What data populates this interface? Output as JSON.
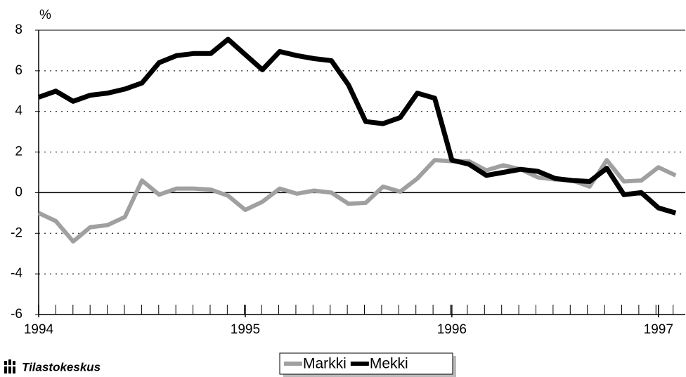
{
  "chart_data": {
    "type": "line",
    "y_unit_label": "%",
    "source": "Tilastokeskus",
    "x": [
      1994,
      1994.083,
      1994.167,
      1994.25,
      1994.333,
      1994.417,
      1994.5,
      1994.583,
      1994.667,
      1994.75,
      1994.833,
      1994.917,
      1995,
      1995.083,
      1995.167,
      1995.25,
      1995.333,
      1995.417,
      1995.5,
      1995.583,
      1995.667,
      1995.75,
      1995.833,
      1995.917,
      1996,
      1996.083,
      1996.167,
      1996.25,
      1996.333,
      1996.417,
      1996.5,
      1996.583,
      1996.667,
      1996.75,
      1996.833,
      1996.917,
      1997,
      1997.083
    ],
    "series": [
      {
        "name": "Markki",
        "color": "#a0a0a0",
        "values": [
          -1.0,
          -1.4,
          -2.4,
          -1.7,
          -1.6,
          -1.2,
          0.6,
          -0.1,
          0.2,
          0.2,
          0.15,
          -0.15,
          -0.85,
          -0.45,
          0.2,
          -0.05,
          0.1,
          0.0,
          -0.55,
          -0.5,
          0.3,
          0.05,
          0.7,
          1.6,
          1.55,
          1.55,
          1.1,
          1.35,
          1.15,
          0.75,
          0.65,
          0.6,
          0.3,
          1.6,
          0.55,
          0.6,
          1.25,
          0.85
        ]
      },
      {
        "name": "Mekki",
        "color": "#000000",
        "values": [
          4.7,
          5.0,
          4.5,
          4.8,
          4.9,
          5.1,
          5.4,
          6.4,
          6.75,
          6.85,
          6.85,
          7.55,
          6.8,
          6.05,
          6.95,
          6.75,
          6.6,
          6.5,
          5.3,
          3.5,
          3.4,
          3.7,
          4.9,
          4.65,
          1.6,
          1.4,
          0.85,
          1.0,
          1.15,
          1.05,
          0.7,
          0.6,
          0.55,
          1.2,
          -0.1,
          0.0,
          -0.75,
          -1.0
        ]
      }
    ],
    "xlim": [
      1994,
      1997.13
    ],
    "xticks": [
      1994,
      1995,
      1996,
      1997
    ],
    "ylim": [
      -6,
      8
    ],
    "yticks": [
      -6,
      -4,
      -2,
      0,
      2,
      4,
      6,
      8
    ],
    "grid": true
  }
}
